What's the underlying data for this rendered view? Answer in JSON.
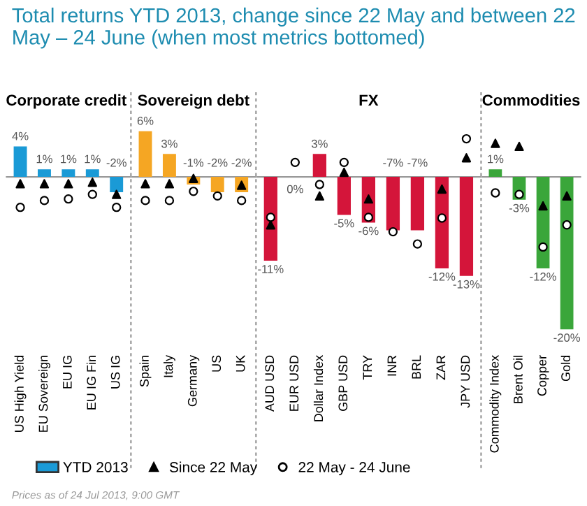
{
  "chart_data": [
    {
      "type": "bar",
      "title": "Corporate credit",
      "categories": [
        "US High Yield",
        "EU Sovereign",
        "EU IG",
        "EU IG Fin",
        "US IG"
      ],
      "tick_labels": "x",
      "legend": "bottom",
      "ref_lines": [
        {
          "axis": "y",
          "value": 0,
          "color": "#999999"
        }
      ],
      "annotations": [
        "Total returns YTD 2013, change since 22 May and between 22 May – 24 June (when most metrics bottomed)",
        "Prices as of 24 Jul 2013, 9:00 GMT"
      ],
      "series": [
        {
          "name": "YTD 2013",
          "color": "#1a9ad6",
          "values": [
            4,
            1,
            1,
            1,
            -2
          ],
          "value_labels": [
            "4%",
            "1%",
            "1%",
            "1%",
            "-2%"
          ]
        },
        {
          "name": "Since 22 May",
          "type": "scatter",
          "marker": "triangle",
          "color": "#000000",
          "values": [
            -0.9,
            -0.9,
            -0.9,
            -0.7,
            -2.3
          ]
        },
        {
          "name": "22 May - 24 June",
          "type": "scatter",
          "marker": "circle",
          "color": "#000000",
          "values": [
            -4,
            -3.1,
            -2.9,
            -2.3,
            -4
          ]
        }
      ]
    },
    {
      "type": "bar",
      "title": "Sovereign debt",
      "categories": [
        "Spain",
        "Italy",
        "Germany",
        "US",
        "UK"
      ],
      "tick_labels": "x",
      "ref_lines": [
        {
          "axis": "y",
          "value": 0,
          "color": "#999999"
        }
      ],
      "series": [
        {
          "color": "#f5a623",
          "values": [
            6,
            3,
            -1,
            -2,
            -2
          ],
          "value_labels": [
            "6%",
            "3%",
            "-1%",
            "-2%",
            "-2%"
          ]
        },
        {
          "type": "scatter",
          "marker": "triangle",
          "color": "#000000",
          "values": [
            -0.9,
            -0.9,
            -0.2,
            null,
            -1.1
          ]
        },
        {
          "type": "scatter",
          "marker": "circle",
          "color": "#000000",
          "values": [
            -3.1,
            -3.1,
            -1.9,
            -2.5,
            -3.1
          ]
        }
      ]
    },
    {
      "type": "bar",
      "title": "FX",
      "categories": [
        "AUD USD",
        "EUR USD",
        "Dollar Index",
        "GBP USD",
        "TRY",
        "INR",
        "BRL",
        "ZAR",
        "JPY USD"
      ],
      "tick_labels": "x",
      "ref_lines": [
        {
          "axis": "y",
          "value": 0,
          "color": "#999999"
        }
      ],
      "series": [
        {
          "color": "#d4153a",
          "values": [
            -11,
            0,
            3,
            -5,
            -6,
            -7,
            -7,
            -12,
            -13
          ],
          "value_labels": [
            "-11%",
            "0%",
            "3%",
            "-5%",
            "-6%",
            "-7%",
            "-7%",
            "-12%",
            "-13%"
          ]
        },
        {
          "type": "scatter",
          "marker": "triangle",
          "color": "#000000",
          "values": [
            -6.3,
            null,
            -2.5,
            0.6,
            -2.9,
            null,
            null,
            -1.6,
            2.5
          ]
        },
        {
          "type": "scatter",
          "marker": "circle",
          "color": "#000000",
          "values": [
            -5.3,
            1.9,
            -1,
            1.9,
            -5.3,
            -7.2,
            -8.8,
            -5.4,
            5
          ]
        }
      ]
    },
    {
      "type": "bar",
      "title": "Commodities",
      "categories": [
        "Commodity Index",
        "Brent Oil",
        "Copper",
        "Gold"
      ],
      "tick_labels": "x",
      "ref_lines": [
        {
          "axis": "y",
          "value": 0,
          "color": "#999999"
        }
      ],
      "series": [
        {
          "color": "#3aa63a",
          "values": [
            1,
            -3,
            -12,
            -20
          ],
          "value_labels": [
            "1%",
            "-3%",
            "-12%",
            "-20%"
          ]
        },
        {
          "type": "scatter",
          "marker": "triangle",
          "color": "#000000",
          "values": [
            4.4,
            4,
            -3.8,
            -2.5
          ]
        },
        {
          "type": "scatter",
          "marker": "circle",
          "color": "#000000",
          "values": [
            -2.1,
            -2.3,
            -9.2,
            -6.3
          ]
        }
      ]
    }
  ]
}
